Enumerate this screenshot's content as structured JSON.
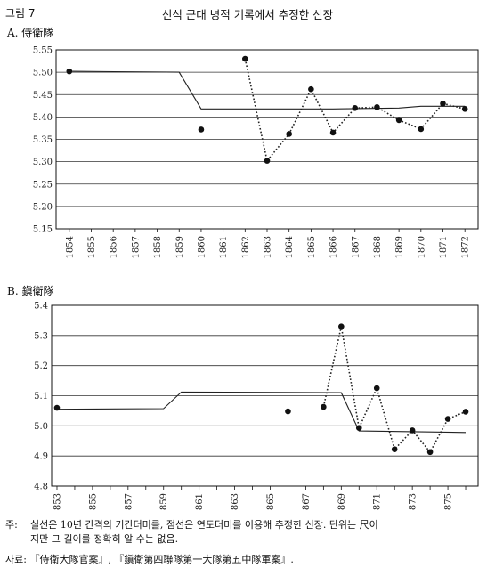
{
  "figure": {
    "label": "그림 7",
    "title": "신식 군대 병적 기록에서 추정한 신장"
  },
  "chart_data": [
    {
      "type": "line",
      "panel_title": "A. 侍衛隊",
      "x": [
        1854,
        1855,
        1856,
        1857,
        1858,
        1859,
        1860,
        1861,
        1862,
        1863,
        1864,
        1865,
        1866,
        1867,
        1868,
        1869,
        1870,
        1871,
        1872
      ],
      "x_tick_labels": [
        "1854",
        "1855",
        "1856",
        "1857",
        "1858",
        "1859",
        "1860",
        "1861",
        "1862",
        "1863",
        "1864",
        "1865",
        "1866",
        "1867",
        "1868",
        "1869",
        "1870",
        "1871",
        "1872"
      ],
      "ylim": [
        5.15,
        5.55
      ],
      "y_ticks": [
        "5.15",
        "5.20",
        "5.25",
        "5.30",
        "5.35",
        "5.40",
        "5.45",
        "5.50",
        "5.55"
      ],
      "grid": true,
      "series": [
        {
          "style": "solid",
          "points": [
            [
              1854,
              5.502
            ],
            [
              1859,
              5.5
            ],
            [
              1860,
              5.418
            ],
            [
              1866,
              5.418
            ],
            [
              1869,
              5.42
            ],
            [
              1870,
              5.424
            ],
            [
              1872,
              5.424
            ]
          ]
        },
        {
          "style": "dotted",
          "points": [
            [
              1862,
              5.53
            ],
            [
              1863,
              5.302
            ],
            [
              1864,
              5.362
            ],
            [
              1865,
              5.462
            ],
            [
              1866,
              5.365
            ],
            [
              1867,
              5.42
            ],
            [
              1868,
              5.422
            ],
            [
              1869,
              5.393
            ],
            [
              1870,
              5.373
            ],
            [
              1871,
              5.43
            ],
            [
              1872,
              5.418
            ]
          ]
        },
        {
          "style": "dots",
          "points": [
            [
              1854,
              5.502
            ],
            [
              1860,
              5.372
            ]
          ]
        }
      ]
    },
    {
      "type": "line",
      "panel_title": "B. 鎭衛隊",
      "x": [
        1853,
        1854,
        1855,
        1856,
        1857,
        1858,
        1859,
        1860,
        1861,
        1862,
        1863,
        1864,
        1865,
        1866,
        1867,
        1868,
        1869,
        1870,
        1871,
        1872,
        1873,
        1874,
        1875,
        1876
      ],
      "x_tick_labels": [
        "1853",
        "1855",
        "1857",
        "1859",
        "1861",
        "1863",
        "1865",
        "1867",
        "1869",
        "1871",
        "1873",
        "1875"
      ],
      "ylim": [
        4.8,
        5.4
      ],
      "y_ticks": [
        "4.8",
        "4.9",
        "5.0",
        "5.1",
        "5.2",
        "5.3",
        "5.4"
      ],
      "grid": true,
      "series": [
        {
          "style": "solid",
          "points": [
            [
              1853,
              5.055
            ],
            [
              1859,
              5.057
            ],
            [
              1860,
              5.112
            ],
            [
              1869,
              5.11
            ],
            [
              1870,
              4.983
            ],
            [
              1876,
              4.978
            ]
          ]
        },
        {
          "style": "dotted",
          "points": [
            [
              1868,
              5.063
            ],
            [
              1869,
              5.33
            ],
            [
              1870,
              4.993
            ],
            [
              1871,
              5.125
            ],
            [
              1872,
              4.922
            ],
            [
              1873,
              4.985
            ],
            [
              1874,
              4.913
            ],
            [
              1875,
              5.023
            ],
            [
              1876,
              5.047
            ]
          ]
        },
        {
          "style": "dots",
          "points": [
            [
              1853,
              5.06
            ],
            [
              1866,
              5.048
            ]
          ]
        }
      ]
    }
  ],
  "notes": {
    "lead": "주:",
    "line1": "실선은 10년 간격의 기간더미를, 점선은 연도더미를 이용해 추정한 신장. 단위는 尺이",
    "line2": "지만 그 길이를 정확히 알 수는 없음.",
    "source": "자료: 『侍衛大隊官案』, 『鎭衛第四聯隊第一大隊第五中隊軍案』."
  }
}
